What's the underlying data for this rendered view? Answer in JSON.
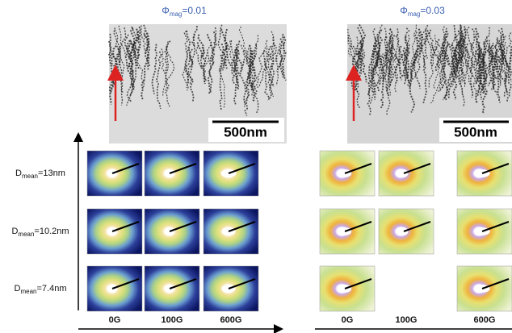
{
  "panels": [
    {
      "title": {
        "symbol": "Φ",
        "sub": "mag",
        "rest": "=0.01"
      },
      "scale_bar": "500nm",
      "columns": [
        "0G",
        "100G",
        "600G"
      ]
    },
    {
      "title": {
        "symbol": "Φ",
        "sub": "mag",
        "rest": "=0.03"
      },
      "scale_bar": "500nm",
      "columns": [
        "0G",
        "100G",
        "600G"
      ]
    }
  ],
  "rows": [
    {
      "symbol": "D",
      "sub": "mean",
      "rest": "=13nm"
    },
    {
      "symbol": "D",
      "sub": "mean",
      "rest": "=10.2nm"
    },
    {
      "symbol": "D",
      "sub": "mean",
      "rest": "=7.4nm"
    }
  ]
}
